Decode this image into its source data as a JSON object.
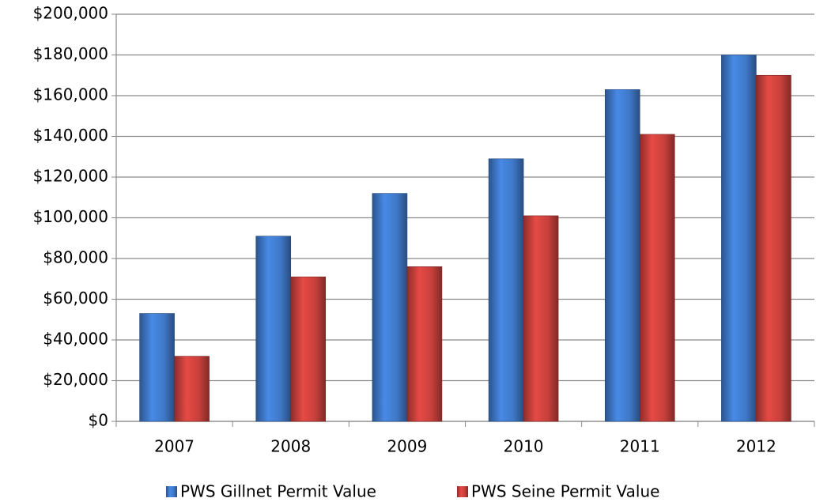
{
  "chart_data": {
    "type": "bar",
    "categories": [
      "2007",
      "2008",
      "2009",
      "2010",
      "2011",
      "2012"
    ],
    "series": [
      {
        "name": "PWS Gillnet Permit Value",
        "color": "#3f78c8",
        "values": [
          53000,
          91000,
          112000,
          129000,
          163000,
          180000
        ]
      },
      {
        "name": "PWS Seine Permit Value",
        "color": "#c8403c",
        "values": [
          32000,
          71000,
          76000,
          101000,
          141000,
          170000
        ]
      }
    ],
    "ylim": [
      0,
      200000
    ],
    "yticks": [
      {
        "value": 0,
        "label": "$0"
      },
      {
        "value": 20000,
        "label": "$20,000"
      },
      {
        "value": 40000,
        "label": "$40,000"
      },
      {
        "value": 60000,
        "label": "$60,000"
      },
      {
        "value": 80000,
        "label": "$80,000"
      },
      {
        "value": 100000,
        "label": "$100,000"
      },
      {
        "value": 120000,
        "label": "$120,000"
      },
      {
        "value": 140000,
        "label": "$140,000"
      },
      {
        "value": 160000,
        "label": "$160,000"
      },
      {
        "value": 180000,
        "label": "$180,000"
      },
      {
        "value": 200000,
        "label": "$200,000"
      }
    ],
    "grid": true,
    "legend": "bottom"
  }
}
